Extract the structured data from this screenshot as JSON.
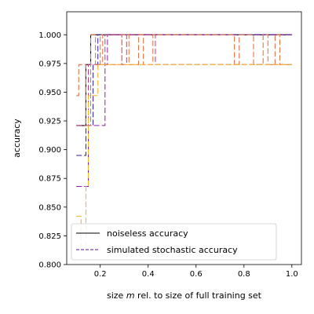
{
  "chart_data": {
    "type": "line",
    "title": "",
    "xlabel_prefix": "size ",
    "xlabel_var": "m",
    "xlabel_suffix": " rel. to size of full training set",
    "ylabel": "accuracy",
    "xlim": [
      0.06,
      1.04
    ],
    "ylim": [
      0.8,
      1.02
    ],
    "xticks": [
      0.2,
      0.4,
      0.6,
      0.8,
      1.0
    ],
    "xtick_labels": [
      "0.2",
      "0.4",
      "0.6",
      "0.8",
      "1.0"
    ],
    "yticks": [
      0.8,
      0.825,
      0.85,
      0.875,
      0.9,
      0.925,
      0.95,
      0.975,
      1.0
    ],
    "ytick_labels": [
      "0.800",
      "0.825",
      "0.850",
      "0.875",
      "0.900",
      "0.925",
      "0.950",
      "0.975",
      "1.000"
    ],
    "grid": false,
    "legend_position": "lower-right",
    "legend": [
      {
        "label": "noiseless accuracy",
        "color": "#000000",
        "dash": "solid"
      },
      {
        "label": "simulated stochastic accuracy",
        "color": "#5b0fa3",
        "dash": "dashed"
      }
    ],
    "series": [
      {
        "color": "#000000",
        "dash": "solid",
        "width": 1.1,
        "x": [
          0.1,
          0.14,
          0.14,
          0.16,
          0.16,
          1.0
        ],
        "y": [
          0.921,
          0.921,
          0.974,
          0.974,
          1.0,
          1.0
        ]
      },
      {
        "color": "#2a1aa6",
        "dash": "dashed",
        "width": 1.0,
        "x": [
          0.1,
          0.14,
          0.14,
          0.17,
          0.17,
          0.19,
          0.19,
          0.22,
          0.22,
          1.0
        ],
        "y": [
          0.895,
          0.895,
          0.921,
          0.921,
          0.974,
          0.974,
          1.0,
          1.0,
          1.0,
          1.0
        ]
      },
      {
        "color": "#8a1fa6",
        "dash": "dashed",
        "width": 1.0,
        "x": [
          0.1,
          0.15,
          0.15,
          0.17,
          0.17,
          0.22,
          0.22,
          0.23,
          0.23,
          1.0
        ],
        "y": [
          0.868,
          0.868,
          0.921,
          0.921,
          0.921,
          0.921,
          0.974,
          0.974,
          1.0,
          1.0
        ]
      },
      {
        "color": "#c0397a",
        "dash": "dashed",
        "width": 1.0,
        "x": [
          0.1,
          0.15,
          0.15,
          0.18,
          0.18,
          0.22,
          0.22,
          0.29,
          0.29,
          0.31,
          0.31,
          0.43,
          0.43,
          1.0
        ],
        "y": [
          0.921,
          0.921,
          0.974,
          0.974,
          0.974,
          0.974,
          1.0,
          1.0,
          0.974,
          0.974,
          1.0,
          1.0,
          0.974,
          0.974
        ]
      },
      {
        "color": "#e8744c",
        "dash": "dashed",
        "width": 1.1,
        "x": [
          0.1,
          0.11,
          0.11,
          0.12,
          0.12,
          0.14,
          0.14,
          0.16,
          0.16,
          0.18,
          0.18,
          0.2,
          0.2,
          0.21,
          0.21,
          0.29,
          0.29,
          0.32,
          0.32,
          0.36,
          0.36,
          0.38,
          0.38,
          0.42,
          0.42,
          0.44,
          0.44,
          0.76,
          0.76,
          0.78,
          0.78,
          0.84,
          0.84,
          0.88,
          0.88,
          0.9,
          0.9,
          0.93,
          0.93,
          0.95,
          0.95,
          1.0
        ],
        "y": [
          0.947,
          0.947,
          0.974,
          0.974,
          0.974,
          0.974,
          0.921,
          0.921,
          1.0,
          1.0,
          0.974,
          0.974,
          1.0,
          1.0,
          0.974,
          0.974,
          1.0,
          1.0,
          0.974,
          0.974,
          1.0,
          1.0,
          0.974,
          0.974,
          1.0,
          1.0,
          1.0,
          1.0,
          0.974,
          0.974,
          1.0,
          1.0,
          0.974,
          0.974,
          1.0,
          1.0,
          0.974,
          0.974,
          1.0,
          1.0,
          0.974,
          0.974
        ]
      },
      {
        "color": "#f5b631",
        "dash": "dashed",
        "width": 1.1,
        "x": [
          0.1,
          0.12,
          0.12,
          0.14,
          0.14,
          0.15,
          0.15,
          0.17,
          0.17,
          0.19,
          0.19,
          0.23,
          0.23,
          0.28,
          0.28,
          0.3,
          0.3,
          1.0
        ],
        "y": [
          0.842,
          0.842,
          0.816,
          0.816,
          0.868,
          0.868,
          0.947,
          0.947,
          0.947,
          0.947,
          0.974,
          0.974,
          0.974,
          0.974,
          0.974,
          0.974,
          0.974,
          0.974
        ]
      }
    ]
  }
}
